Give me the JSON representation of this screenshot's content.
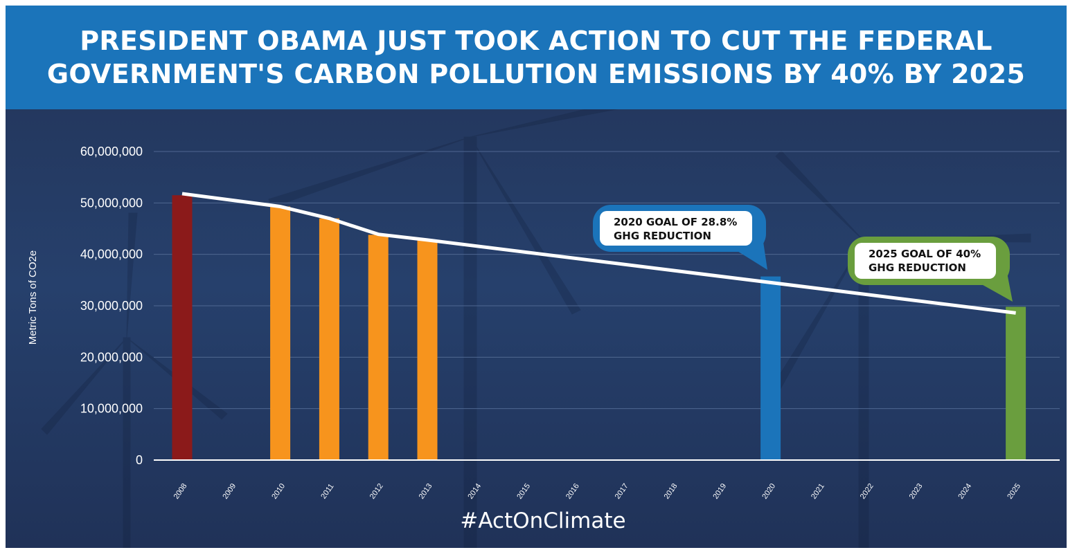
{
  "banner": {
    "line1": "PRESIDENT OBAMA JUST TOOK ACTION TO CUT THE  FEDERAL",
    "line2": "GOVERNMENT'S CARBON POLLUTION EMISSIONS BY 40% BY 2025",
    "color": "#1b74ba"
  },
  "hashtag": "#ActOnClimate",
  "colors": {
    "baseline_bar": "#8b1a1a",
    "actual_bar": "#f7941d",
    "goal_2020": "#1b74ba",
    "goal_2025": "#6a9e3e",
    "trend_line": "#ffffff",
    "background": "#24385f"
  },
  "chart_data": {
    "type": "bar",
    "ylabel": "Metric Tons of CO2e",
    "xlabel": "",
    "ylim": [
      0,
      60000000
    ],
    "yticks": [
      0,
      10000000,
      20000000,
      30000000,
      40000000,
      50000000,
      60000000
    ],
    "ytick_labels": [
      "0",
      "10,000,000",
      "20,000,000",
      "30,000,000",
      "40,000,000",
      "50,000,000",
      "60,000,000"
    ],
    "grid": true,
    "categories": [
      "2008",
      "2009",
      "2010",
      "2011",
      "2012",
      "2013",
      "2014",
      "2015",
      "2016",
      "2017",
      "2018",
      "2019",
      "2020",
      "2021",
      "2022",
      "2023",
      "2024",
      "2025"
    ],
    "bars": [
      {
        "x": "2008",
        "value": 51500000,
        "kind": "baseline_bar"
      },
      {
        "x": "2010",
        "value": 49300000,
        "kind": "actual_bar"
      },
      {
        "x": "2011",
        "value": 47000000,
        "kind": "actual_bar"
      },
      {
        "x": "2012",
        "value": 43800000,
        "kind": "actual_bar"
      },
      {
        "x": "2013",
        "value": 42700000,
        "kind": "actual_bar"
      },
      {
        "x": "2020",
        "value": 35700000,
        "kind": "goal_2020"
      },
      {
        "x": "2025",
        "value": 29800000,
        "kind": "goal_2025"
      }
    ],
    "trend_line": [
      {
        "x": "2008",
        "y": 51800000
      },
      {
        "x": "2010",
        "y": 49300000
      },
      {
        "x": "2011",
        "y": 47000000
      },
      {
        "x": "2012",
        "y": 43900000
      },
      {
        "x": "2013",
        "y": 42800000
      },
      {
        "x": "2025",
        "y": 28600000
      }
    ],
    "callouts": [
      {
        "lines": [
          "2020 GOAL OF 28.8%",
          "GHG REDUCTION"
        ],
        "target": "2020",
        "color_key": "goal_2020"
      },
      {
        "lines": [
          "2025 GOAL OF 40%",
          "GHG REDUCTION"
        ],
        "target": "2025",
        "color_key": "goal_2025"
      }
    ]
  }
}
